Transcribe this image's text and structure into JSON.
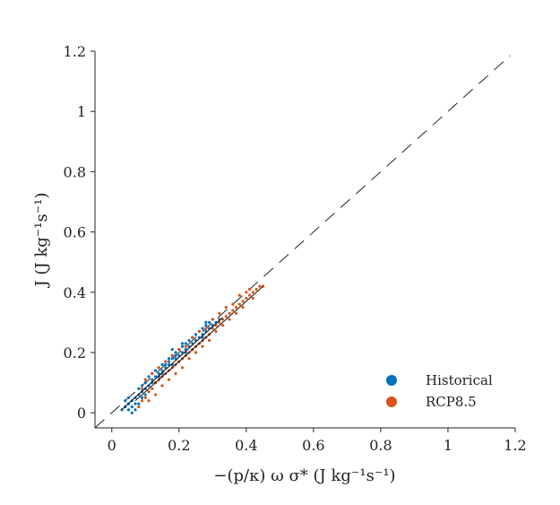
{
  "chart_data": {
    "type": "scatter",
    "title": "",
    "xlabel": "−(p/κ) ω σ* (J kg⁻¹s⁻¹)",
    "ylabel": "J (J kg⁻¹s⁻¹)",
    "xlim": [
      -0.05,
      1.2
    ],
    "ylim": [
      -0.05,
      1.2
    ],
    "xticks": [
      0,
      0.2,
      0.4,
      0.6,
      0.8,
      1,
      1.2
    ],
    "xtick_labels": [
      "0",
      "0.2",
      "0.4",
      "0.6",
      "0.8",
      "1",
      "1.2"
    ],
    "yticks": [
      0,
      0.2,
      0.4,
      0.6,
      0.8,
      1,
      1.2
    ],
    "ytick_labels": [
      "0",
      "0.2",
      "0.4",
      "0.6",
      "0.8",
      "1",
      "1.2"
    ],
    "grid": false,
    "legend_position": "bottom-right",
    "reference_line": {
      "style": "dashed",
      "slope": 1,
      "intercept": 0,
      "color": "#222222"
    },
    "series": [
      {
        "name": "Historical",
        "color": "#0072BD",
        "x_range": [
          0.03,
          0.33
        ],
        "fit": {
          "slope": 1.02,
          "intercept": -0.02
        },
        "points": [
          [
            0.04,
            0.02
          ],
          [
            0.05,
            0.01
          ],
          [
            0.05,
            0.03
          ],
          [
            0.06,
            0.02
          ],
          [
            0.06,
            0.04
          ],
          [
            0.07,
            0.01
          ],
          [
            0.07,
            0.05
          ],
          [
            0.08,
            0.03
          ],
          [
            0.08,
            0.06
          ],
          [
            0.09,
            0.05
          ],
          [
            0.09,
            0.07
          ],
          [
            0.1,
            0.06
          ],
          [
            0.1,
            0.08
          ],
          [
            0.11,
            0.09
          ],
          [
            0.11,
            0.07
          ],
          [
            0.12,
            0.1
          ],
          [
            0.12,
            0.11
          ],
          [
            0.13,
            0.12
          ],
          [
            0.13,
            0.1
          ],
          [
            0.14,
            0.13
          ],
          [
            0.14,
            0.12
          ],
          [
            0.15,
            0.14
          ],
          [
            0.15,
            0.13
          ],
          [
            0.16,
            0.15
          ],
          [
            0.16,
            0.16
          ],
          [
            0.17,
            0.16
          ],
          [
            0.17,
            0.17
          ],
          [
            0.18,
            0.18
          ],
          [
            0.18,
            0.16
          ],
          [
            0.19,
            0.19
          ],
          [
            0.19,
            0.18
          ],
          [
            0.2,
            0.19
          ],
          [
            0.2,
            0.21
          ],
          [
            0.21,
            0.2
          ],
          [
            0.21,
            0.22
          ],
          [
            0.22,
            0.21
          ],
          [
            0.22,
            0.23
          ],
          [
            0.23,
            0.22
          ],
          [
            0.23,
            0.24
          ],
          [
            0.24,
            0.23
          ],
          [
            0.24,
            0.25
          ],
          [
            0.25,
            0.24
          ],
          [
            0.25,
            0.26
          ],
          [
            0.26,
            0.25
          ],
          [
            0.26,
            0.27
          ],
          [
            0.27,
            0.26
          ],
          [
            0.27,
            0.28
          ],
          [
            0.28,
            0.27
          ],
          [
            0.28,
            0.29
          ],
          [
            0.29,
            0.28
          ],
          [
            0.29,
            0.3
          ],
          [
            0.3,
            0.29
          ],
          [
            0.3,
            0.31
          ],
          [
            0.31,
            0.3
          ],
          [
            0.32,
            0.31
          ],
          [
            0.06,
            0.0
          ],
          [
            0.07,
            0.03
          ],
          [
            0.05,
            0.05
          ],
          [
            0.08,
            0.08
          ],
          [
            0.09,
            0.09
          ],
          [
            0.12,
            0.13
          ],
          [
            0.14,
            0.15
          ],
          [
            0.16,
            0.17
          ],
          [
            0.18,
            0.19
          ],
          [
            0.18,
            0.21
          ],
          [
            0.2,
            0.17
          ],
          [
            0.22,
            0.2
          ],
          [
            0.24,
            0.21
          ],
          [
            0.26,
            0.23
          ],
          [
            0.27,
            0.25
          ],
          [
            0.28,
            0.3
          ],
          [
            0.04,
            0.04
          ],
          [
            0.03,
            0.01
          ],
          [
            0.1,
            0.1
          ],
          [
            0.11,
            0.12
          ],
          [
            0.13,
            0.14
          ],
          [
            0.15,
            0.16
          ],
          [
            0.17,
            0.18
          ],
          [
            0.19,
            0.2
          ],
          [
            0.21,
            0.23
          ]
        ]
      },
      {
        "name": "RCP8.5",
        "color": "#D95319",
        "x_range": [
          0.07,
          0.45
        ],
        "fit": {
          "slope": 1.0,
          "intercept": -0.03
        },
        "points": [
          [
            0.08,
            0.02
          ],
          [
            0.09,
            0.04
          ],
          [
            0.1,
            0.05
          ],
          [
            0.11,
            0.07
          ],
          [
            0.12,
            0.08
          ],
          [
            0.13,
            0.1
          ],
          [
            0.14,
            0.11
          ],
          [
            0.15,
            0.12
          ],
          [
            0.16,
            0.13
          ],
          [
            0.17,
            0.14
          ],
          [
            0.18,
            0.15
          ],
          [
            0.19,
            0.16
          ],
          [
            0.2,
            0.17
          ],
          [
            0.21,
            0.18
          ],
          [
            0.22,
            0.19
          ],
          [
            0.23,
            0.2
          ],
          [
            0.24,
            0.21
          ],
          [
            0.25,
            0.22
          ],
          [
            0.26,
            0.23
          ],
          [
            0.27,
            0.24
          ],
          [
            0.28,
            0.25
          ],
          [
            0.29,
            0.26
          ],
          [
            0.3,
            0.28
          ],
          [
            0.31,
            0.29
          ],
          [
            0.32,
            0.3
          ],
          [
            0.33,
            0.31
          ],
          [
            0.34,
            0.32
          ],
          [
            0.35,
            0.33
          ],
          [
            0.36,
            0.34
          ],
          [
            0.37,
            0.35
          ],
          [
            0.38,
            0.36
          ],
          [
            0.39,
            0.37
          ],
          [
            0.4,
            0.38
          ],
          [
            0.41,
            0.39
          ],
          [
            0.42,
            0.4
          ],
          [
            0.43,
            0.41
          ],
          [
            0.44,
            0.42
          ],
          [
            0.4,
            0.4
          ],
          [
            0.41,
            0.41
          ],
          [
            0.38,
            0.39
          ],
          [
            0.36,
            0.36
          ],
          [
            0.34,
            0.35
          ],
          [
            0.32,
            0.33
          ],
          [
            0.3,
            0.31
          ],
          [
            0.28,
            0.28
          ],
          [
            0.26,
            0.27
          ],
          [
            0.24,
            0.25
          ],
          [
            0.22,
            0.22
          ],
          [
            0.2,
            0.21
          ],
          [
            0.18,
            0.19
          ],
          [
            0.16,
            0.17
          ],
          [
            0.14,
            0.15
          ],
          [
            0.12,
            0.13
          ],
          [
            0.1,
            0.11
          ],
          [
            0.09,
            0.08
          ],
          [
            0.11,
            0.04
          ],
          [
            0.13,
            0.06
          ],
          [
            0.15,
            0.09
          ],
          [
            0.17,
            0.11
          ],
          [
            0.19,
            0.13
          ],
          [
            0.21,
            0.15
          ],
          [
            0.23,
            0.18
          ],
          [
            0.25,
            0.2
          ],
          [
            0.27,
            0.22
          ],
          [
            0.29,
            0.24
          ],
          [
            0.31,
            0.27
          ],
          [
            0.33,
            0.29
          ],
          [
            0.35,
            0.31
          ],
          [
            0.37,
            0.33
          ],
          [
            0.39,
            0.35
          ],
          [
            0.42,
            0.38
          ],
          [
            0.45,
            0.42
          ]
        ]
      }
    ]
  }
}
